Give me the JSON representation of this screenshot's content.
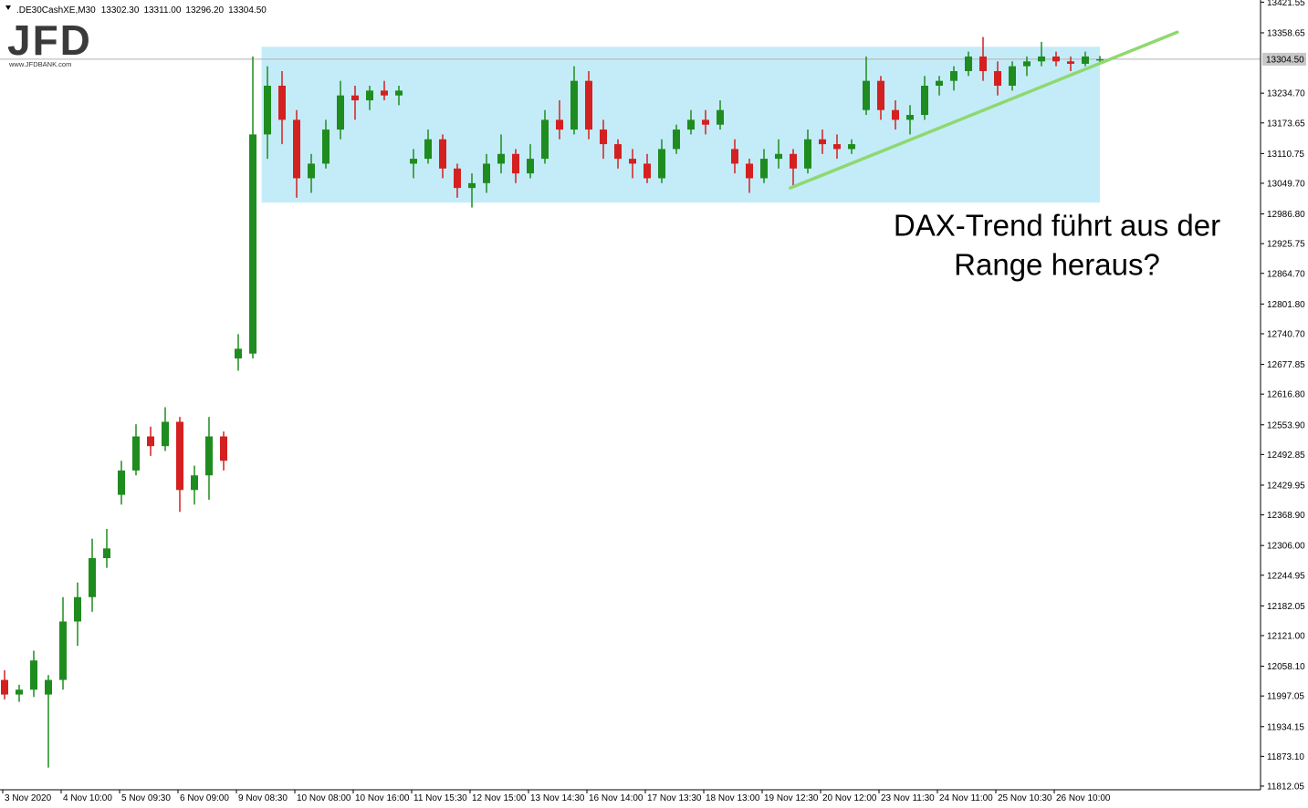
{
  "chart_data": {
    "type": "candlestick",
    "symbol": ".DE30CashXE,M30",
    "last_bar_labels": [
      "13302.30",
      "13311.00",
      "13296.20",
      "13304.50"
    ],
    "logo": {
      "name": "JFD",
      "url": "www.JFDBANK.com"
    },
    "annotation": [
      "DAX-Trend führt aus der",
      "Range heraus?"
    ],
    "categories": [
      "3 Nov 2020",
      null,
      null,
      null,
      "4 Nov 10:00",
      null,
      null,
      null,
      "5 Nov 09:30",
      null,
      null,
      null,
      "6 Nov 09:00",
      null,
      null,
      null,
      "9 Nov 08:30",
      null,
      null,
      null,
      "10 Nov 08:00",
      null,
      null,
      null,
      "10 Nov 16:00",
      null,
      null,
      null,
      "11 Nov 15:30",
      null,
      null,
      null,
      "12 Nov 15:00",
      null,
      null,
      null,
      "13 Nov 14:30",
      null,
      null,
      null,
      "16 Nov 14:00",
      null,
      null,
      null,
      "17 Nov 13:30",
      null,
      null,
      null,
      "18 Nov 13:00",
      null,
      null,
      null,
      "19 Nov 12:30",
      null,
      null,
      null,
      "20 Nov 12:00",
      null,
      null,
      null,
      "23 Nov 11:30",
      null,
      null,
      null,
      "24 Nov 11:00",
      null,
      null,
      null,
      "25 Nov 10:30",
      null,
      null,
      null,
      "26 Nov 10:00",
      null,
      null,
      null
    ],
    "open": [
      12030,
      12000,
      12010,
      12000,
      12030,
      12150,
      12200,
      12280,
      12410,
      12460,
      12530,
      12510,
      12560,
      12420,
      12450,
      12530,
      12690,
      12700,
      13150,
      13250,
      13180,
      13060,
      13090,
      13160,
      13230,
      13220,
      13240,
      13230,
      13090,
      13100,
      13140,
      13080,
      13040,
      13050,
      13090,
      13110,
      13070,
      13100,
      13180,
      13160,
      13260,
      13160,
      13130,
      13100,
      13090,
      13060,
      13120,
      13160,
      13180,
      13170,
      13120,
      13090,
      13060,
      13100,
      13110,
      13080,
      13140,
      13130,
      13120,
      13200,
      13260,
      13200,
      13180,
      13190,
      13250,
      13260,
      13280,
      13310,
      13280,
      13250,
      13290,
      13300,
      13310,
      13300,
      13295,
      13302.3
    ],
    "high": [
      12050,
      12020,
      12090,
      12040,
      12200,
      12230,
      12320,
      12340,
      12480,
      12555,
      12550,
      12590,
      12570,
      12470,
      12570,
      12540,
      12740,
      13310,
      13290,
      13280,
      13200,
      13110,
      13180,
      13260,
      13250,
      13250,
      13260,
      13250,
      13120,
      13160,
      13150,
      13090,
      13070,
      13110,
      13150,
      13120,
      13130,
      13200,
      13220,
      13290,
      13280,
      13180,
      13140,
      13120,
      13110,
      13140,
      13170,
      13200,
      13200,
      13220,
      13140,
      13100,
      13120,
      13140,
      13120,
      13160,
      13160,
      13150,
      13140,
      13310,
      13270,
      13220,
      13210,
      13270,
      13270,
      13290,
      13320,
      13350,
      13300,
      13300,
      13310,
      13340,
      13320,
      13310,
      13320,
      13311
    ],
    "low": [
      11990,
      11985,
      11995,
      11850,
      12010,
      12100,
      12170,
      12260,
      12390,
      12450,
      12490,
      12500,
      12375,
      12390,
      12400,
      12460,
      12665,
      12690,
      13100,
      13130,
      13020,
      13030,
      13080,
      13140,
      13180,
      13200,
      13220,
      13210,
      13060,
      13090,
      13060,
      13020,
      13000,
      13030,
      13070,
      13050,
      13060,
      13090,
      13140,
      13150,
      13140,
      13100,
      13080,
      13060,
      13050,
      13050,
      13110,
      13150,
      13150,
      13160,
      13070,
      13030,
      13050,
      13080,
      13040,
      13070,
      13110,
      13100,
      13110,
      13190,
      13180,
      13160,
      13150,
      13180,
      13230,
      13240,
      13270,
      13260,
      13230,
      13240,
      13270,
      13290,
      13290,
      13280,
      13290,
      13296.2
    ],
    "close": [
      12000,
      12010,
      12070,
      12030,
      12150,
      12200,
      12280,
      12300,
      12460,
      12530,
      12510,
      12560,
      12420,
      12450,
      12530,
      12480,
      12710,
      13150,
      13250,
      13180,
      13060,
      13090,
      13160,
      13230,
      13220,
      13240,
      13230,
      13240,
      13100,
      13140,
      13080,
      13040,
      13050,
      13090,
      13110,
      13070,
      13100,
      13180,
      13160,
      13260,
      13160,
      13130,
      13100,
      13090,
      13060,
      13120,
      13160,
      13180,
      13170,
      13200,
      13090,
      13060,
      13100,
      13110,
      13080,
      13140,
      13130,
      13120,
      13130,
      13260,
      13200,
      13180,
      13190,
      13250,
      13260,
      13280,
      13310,
      13280,
      13250,
      13290,
      13300,
      13310,
      13300,
      13295,
      13310,
      13304.5
    ],
    "up_color": "#1e8c1e",
    "down_color": "#d42020",
    "ylim": [
      11804.5,
      13426
    ],
    "yticks": [
      {
        "value": 13421.55,
        "label": "13421.55"
      },
      {
        "value": 13358.65,
        "label": "13358.65"
      },
      {
        "value": 13234.7,
        "label": "13234.70"
      },
      {
        "value": 13173.65,
        "label": "13173.65"
      },
      {
        "value": 13110.75,
        "label": "13110.75"
      },
      {
        "value": 13049.7,
        "label": "13049.70"
      },
      {
        "value": 12986.8,
        "label": "12986.80"
      },
      {
        "value": 12925.75,
        "label": "12925.75"
      },
      {
        "value": 12864.7,
        "label": "12864.70"
      },
      {
        "value": 12801.8,
        "label": "12801.80"
      },
      {
        "value": 12740.7,
        "label": "12740.70"
      },
      {
        "value": 12677.85,
        "label": "12677.85"
      },
      {
        "value": 12616.8,
        "label": "12616.80"
      },
      {
        "value": 12553.9,
        "label": "12553.90"
      },
      {
        "value": 12492.85,
        "label": "12492.85"
      },
      {
        "value": 12429.95,
        "label": "12429.95"
      },
      {
        "value": 12368.9,
        "label": "12368.90"
      },
      {
        "value": 12306.0,
        "label": "12306.00"
      },
      {
        "value": 12244.95,
        "label": "12244.95"
      },
      {
        "value": 12182.05,
        "label": "12182.05"
      },
      {
        "value": 12121.0,
        "label": "12121.00"
      },
      {
        "value": 12058.1,
        "label": "12058.10"
      },
      {
        "value": 11997.05,
        "label": "11997.05"
      },
      {
        "value": 11934.15,
        "label": "11934.15"
      },
      {
        "value": 11873.1,
        "label": "11873.10"
      },
      {
        "value": 11812.05,
        "label": "11812.05"
      }
    ],
    "price_line": {
      "value": 13304.5,
      "label": "13304.50"
    },
    "range": {
      "start": 17.6,
      "end": 75,
      "low": 13010,
      "high": 13330,
      "color": "#c4ecf8"
    },
    "trendline": {
      "start": 53.8,
      "end": 80.3,
      "from": 13040,
      "to": 13360,
      "color": "#8fd870"
    }
  }
}
